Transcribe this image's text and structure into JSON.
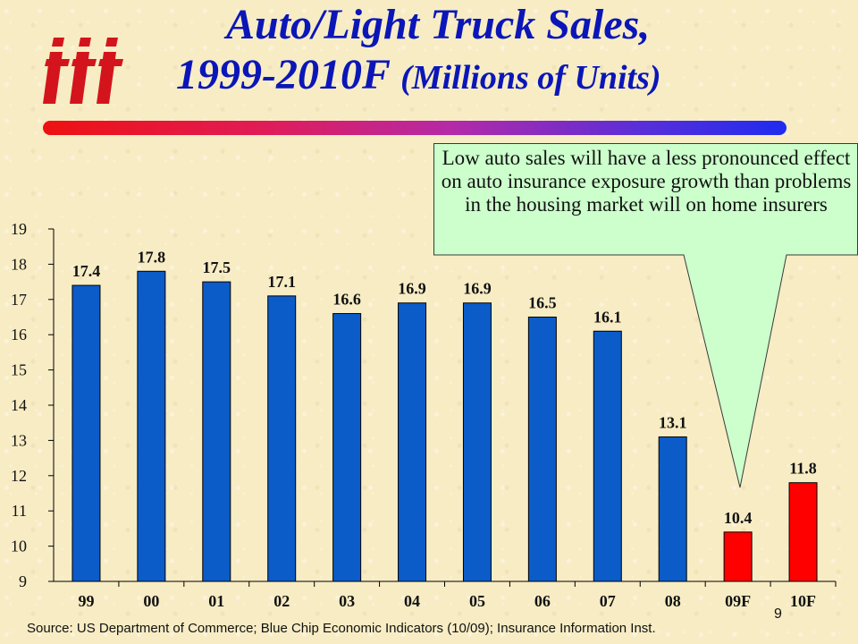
{
  "title": {
    "line1": "Auto/Light Truck Sales,",
    "line2": "1999-2010F",
    "line2_sub": "(Millions of Units)"
  },
  "callout": {
    "text": "Low auto sales will have a less pronounced effect on auto insurance exposure growth than problems in the housing market will on home insurers"
  },
  "footer": {
    "source": "Source: US Department of Commerce; Blue Chip Economic Indicators (10/09); Insurance Information Inst.",
    "page_number": "9"
  },
  "colors": {
    "title": "#0b16b8",
    "bar_actual": "#0b5cc8",
    "bar_forecast": "#ff0000",
    "callout_fill": "#ccffcc",
    "logo": "#d4141c"
  },
  "logo": {
    "icon": "iii-logo"
  },
  "chart_data": {
    "type": "bar",
    "title": "",
    "xlabel": "",
    "ylabel": "",
    "ylim": [
      9,
      19
    ],
    "yticks": [
      9,
      10,
      11,
      12,
      13,
      14,
      15,
      16,
      17,
      18,
      19
    ],
    "grid": false,
    "categories": [
      "99",
      "00",
      "01",
      "02",
      "03",
      "04",
      "05",
      "06",
      "07",
      "08",
      "09F",
      "10F"
    ],
    "values": [
      17.4,
      17.8,
      17.5,
      17.1,
      16.6,
      16.9,
      16.9,
      16.5,
      16.1,
      13.1,
      10.4,
      11.8
    ],
    "data_labels": [
      "17.4",
      "17.8",
      "17.5",
      "17.1",
      "16.6",
      "16.9",
      "16.9",
      "16.5",
      "16.1",
      "13.1",
      "10.4",
      "11.8"
    ],
    "forecast": [
      false,
      false,
      false,
      false,
      false,
      false,
      false,
      false,
      false,
      false,
      true,
      true
    ]
  }
}
